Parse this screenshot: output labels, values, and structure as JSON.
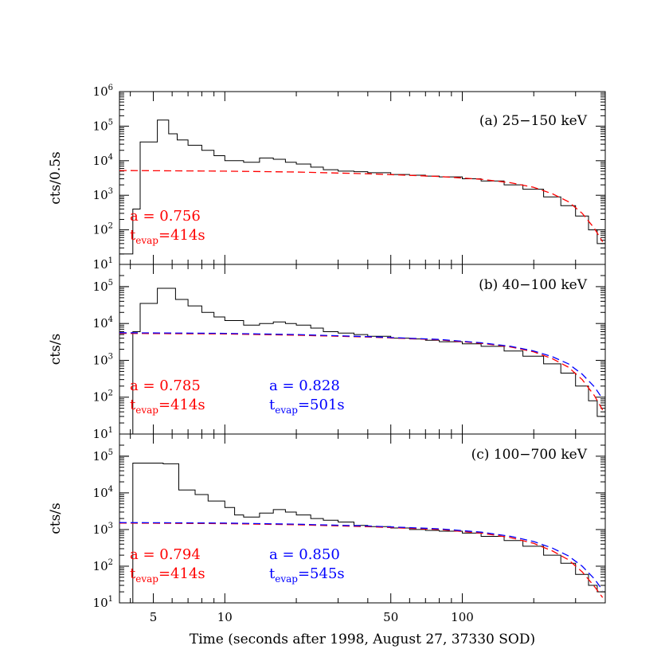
{
  "chart_data": {
    "type": "line",
    "xlabel": "Time (seconds after 1998, August 27, 37330 SOD)",
    "x_scale": "log",
    "x_ticks": [
      5,
      10,
      50,
      100
    ],
    "xlim": [
      3.6,
      400
    ],
    "colors": {
      "data": "#000000",
      "fit_red": "#ff0000",
      "fit_blue": "#0000ff"
    },
    "panels": [
      {
        "label": "(a) 25−150 keV",
        "ylabel": "cts/0.5s",
        "y_scale": "log",
        "ylim": [
          10,
          1000000
        ],
        "y_ticks": [
          {
            "b": "10",
            "e": "1"
          },
          {
            "b": "10",
            "e": "2"
          },
          {
            "b": "10",
            "e": "3"
          },
          {
            "b": "10",
            "e": "4"
          },
          {
            "b": "10",
            "e": "5"
          },
          {
            "b": "10",
            "e": "6"
          }
        ],
        "lightcurve": [
          [
            3.6,
            20
          ],
          [
            4.1,
            400
          ],
          [
            4.4,
            35000
          ],
          [
            5.2,
            150000
          ],
          [
            5.8,
            60000
          ],
          [
            6.3,
            40000
          ],
          [
            7,
            28000
          ],
          [
            8,
            20000
          ],
          [
            9,
            14000
          ],
          [
            10,
            10000
          ],
          [
            12,
            9000
          ],
          [
            14,
            12000
          ],
          [
            16,
            11000
          ],
          [
            18,
            9000
          ],
          [
            20,
            8000
          ],
          [
            23,
            6500
          ],
          [
            26,
            5500
          ],
          [
            30,
            5000
          ],
          [
            35,
            4800
          ],
          [
            40,
            4500
          ],
          [
            50,
            4000
          ],
          [
            60,
            3800
          ],
          [
            70,
            3600
          ],
          [
            80,
            3400
          ],
          [
            100,
            3000
          ],
          [
            120,
            2600
          ],
          [
            150,
            2000
          ],
          [
            180,
            1500
          ],
          [
            220,
            900
          ],
          [
            260,
            500
          ],
          [
            300,
            250
          ],
          [
            340,
            100
          ],
          [
            370,
            40
          ],
          [
            400,
            20
          ]
        ],
        "fits": [
          {
            "a_text": "a = 0.756",
            "t_text": "=414s",
            "color": "#ff0000",
            "curve": [
              [
                3.6,
                5200
              ],
              [
                10,
                5000
              ],
              [
                20,
                4700
              ],
              [
                40,
                4200
              ],
              [
                80,
                3500
              ],
              [
                120,
                2900
              ],
              [
                160,
                2300
              ],
              [
                200,
                1700
              ],
              [
                240,
                1100
              ],
              [
                280,
                650
              ],
              [
                320,
                300
              ],
              [
                360,
                110
              ],
              [
                390,
                45
              ]
            ]
          }
        ]
      },
      {
        "label": "(b) 40−100 keV",
        "ylabel": "cts/s",
        "y_scale": "log",
        "ylim": [
          10,
          200000
        ],
        "y_ticks": [
          {
            "b": "10",
            "e": "1"
          },
          {
            "b": "10",
            "e": "2"
          },
          {
            "b": "10",
            "e": "3"
          },
          {
            "b": "10",
            "e": "4"
          },
          {
            "b": "10",
            "e": "5"
          }
        ],
        "lightcurve": [
          [
            3.6,
            10
          ],
          [
            4.1,
            6000
          ],
          [
            4.4,
            35000
          ],
          [
            5.2,
            90000
          ],
          [
            6.2,
            45000
          ],
          [
            7,
            30000
          ],
          [
            8,
            20000
          ],
          [
            9,
            15000
          ],
          [
            10,
            12000
          ],
          [
            12,
            9000
          ],
          [
            14,
            10000
          ],
          [
            16,
            11000
          ],
          [
            18,
            10000
          ],
          [
            20,
            9000
          ],
          [
            23,
            7500
          ],
          [
            26,
            6000
          ],
          [
            30,
            5500
          ],
          [
            35,
            5000
          ],
          [
            40,
            4500
          ],
          [
            50,
            4000
          ],
          [
            60,
            3800
          ],
          [
            70,
            3500
          ],
          [
            80,
            3200
          ],
          [
            100,
            2800
          ],
          [
            120,
            2400
          ],
          [
            150,
            1800
          ],
          [
            180,
            1300
          ],
          [
            220,
            800
          ],
          [
            260,
            450
          ],
          [
            300,
            200
          ],
          [
            340,
            80
          ],
          [
            370,
            30
          ],
          [
            400,
            20
          ]
        ],
        "fits": [
          {
            "a_text": "a = 0.785",
            "t_text": "=414s",
            "color": "#ff0000",
            "curve": [
              [
                3.6,
                5400
              ],
              [
                10,
                5200
              ],
              [
                20,
                4800
              ],
              [
                40,
                4300
              ],
              [
                80,
                3600
              ],
              [
                120,
                2900
              ],
              [
                160,
                2300
              ],
              [
                200,
                1700
              ],
              [
                240,
                1100
              ],
              [
                280,
                650
              ],
              [
                320,
                300
              ],
              [
                360,
                110
              ],
              [
                390,
                45
              ]
            ]
          },
          {
            "a_text": "a = 0.828",
            "t_text": "=501s",
            "color": "#0000ff",
            "curve": [
              [
                3.6,
                5600
              ],
              [
                10,
                5400
              ],
              [
                20,
                5000
              ],
              [
                40,
                4400
              ],
              [
                80,
                3700
              ],
              [
                120,
                3000
              ],
              [
                160,
                2400
              ],
              [
                200,
                1800
              ],
              [
                240,
                1250
              ],
              [
                280,
                800
              ],
              [
                320,
                420
              ],
              [
                360,
                190
              ],
              [
                390,
                90
              ]
            ]
          }
        ]
      },
      {
        "label": "(c) 100−700 keV",
        "ylabel": "cts/s",
        "y_scale": "log",
        "ylim": [
          10,
          200000
        ],
        "y_ticks": [
          {
            "b": "10",
            "e": "1"
          },
          {
            "b": "10",
            "e": "2"
          },
          {
            "b": "10",
            "e": "3"
          },
          {
            "b": "10",
            "e": "4"
          },
          {
            "b": "10",
            "e": "5"
          }
        ],
        "lightcurve": [
          [
            3.6,
            10
          ],
          [
            4.1,
            65000
          ],
          [
            5.5,
            62000
          ],
          [
            6.4,
            12000
          ],
          [
            7.5,
            9000
          ],
          [
            8.5,
            6000
          ],
          [
            10,
            4000
          ],
          [
            11,
            2500
          ],
          [
            12,
            2200
          ],
          [
            14,
            2800
          ],
          [
            16,
            3500
          ],
          [
            18,
            3000
          ],
          [
            20,
            2500
          ],
          [
            23,
            2000
          ],
          [
            26,
            1800
          ],
          [
            30,
            1600
          ],
          [
            35,
            1300
          ],
          [
            40,
            1200
          ],
          [
            50,
            1100
          ],
          [
            60,
            1000
          ],
          [
            70,
            950
          ],
          [
            80,
            900
          ],
          [
            100,
            800
          ],
          [
            120,
            650
          ],
          [
            150,
            500
          ],
          [
            180,
            350
          ],
          [
            220,
            200
          ],
          [
            260,
            120
          ],
          [
            300,
            60
          ],
          [
            340,
            30
          ],
          [
            370,
            20
          ],
          [
            400,
            15
          ]
        ],
        "fits": [
          {
            "a_text": "a = 0.794",
            "t_text": "=414s",
            "color": "#ff0000",
            "curve": [
              [
                3.6,
                1500
              ],
              [
                10,
                1450
              ],
              [
                20,
                1350
              ],
              [
                40,
                1200
              ],
              [
                80,
                1000
              ],
              [
                120,
                800
              ],
              [
                160,
                600
              ],
              [
                200,
                420
              ],
              [
                240,
                260
              ],
              [
                280,
                150
              ],
              [
                320,
                70
              ],
              [
                360,
                28
              ],
              [
                390,
                14
              ]
            ]
          },
          {
            "a_text": "a = 0.850",
            "t_text": "=545s",
            "color": "#0000ff",
            "curve": [
              [
                3.6,
                1550
              ],
              [
                10,
                1500
              ],
              [
                20,
                1400
              ],
              [
                40,
                1250
              ],
              [
                80,
                1050
              ],
              [
                120,
                850
              ],
              [
                160,
                650
              ],
              [
                200,
                470
              ],
              [
                240,
                310
              ],
              [
                280,
                190
              ],
              [
                320,
                100
              ],
              [
                360,
                45
              ],
              [
                390,
                22
              ]
            ]
          }
        ]
      }
    ]
  }
}
